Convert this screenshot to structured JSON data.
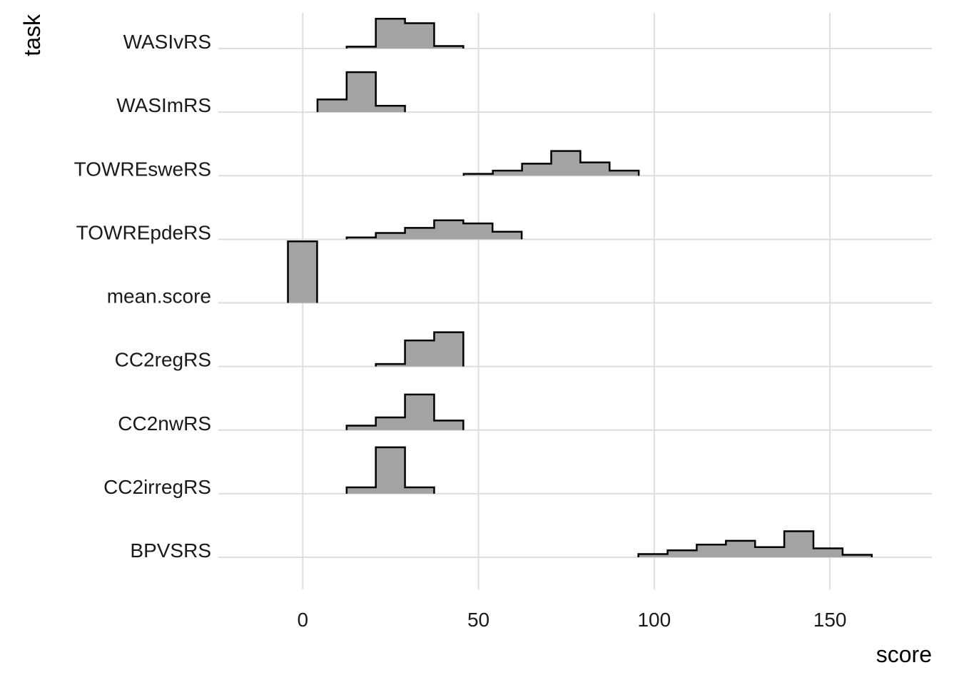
{
  "chart_data": {
    "type": "histogram-ridgeline",
    "title": "",
    "xlabel": "score",
    "ylabel": "task",
    "xlim": [
      -24,
      179
    ],
    "x_ticks": [
      0,
      50,
      100,
      150
    ],
    "grid": true,
    "categories": [
      "BPVSRS",
      "CC2irregRS",
      "CC2nwRS",
      "CC2regRS",
      "mean.score",
      "TOWREpdeRS",
      "TOWREsweRS",
      "WASImRS",
      "WASIvRS"
    ],
    "fill_color": "#a3a3a3",
    "outline_color": "#000000",
    "grid_color": "#dedede",
    "bin_width": 8.3,
    "series": [
      {
        "category": "BPVSRS",
        "bin_start": 95.5,
        "heights": [
          0.05,
          0.11,
          0.2,
          0.26,
          0.16,
          0.41,
          0.14,
          0.04
        ]
      },
      {
        "category": "CC2irregRS",
        "bin_start": 12.5,
        "heights": [
          0.1,
          0.73,
          0.1
        ]
      },
      {
        "category": "CC2nwRS",
        "bin_start": 12.5,
        "heights": [
          0.07,
          0.2,
          0.56,
          0.15
        ]
      },
      {
        "category": "CC2regRS",
        "bin_start": 20.8,
        "heights": [
          0.04,
          0.41,
          0.54
        ]
      },
      {
        "category": "mean.score",
        "bin_start": -4.2,
        "heights": [
          0.97
        ]
      },
      {
        "category": "TOWREpdeRS",
        "bin_start": 12.5,
        "heights": [
          0.03,
          0.1,
          0.18,
          0.3,
          0.25,
          0.12
        ]
      },
      {
        "category": "TOWREsweRS",
        "bin_start": 45.8,
        "heights": [
          0.03,
          0.08,
          0.19,
          0.39,
          0.21,
          0.08
        ]
      },
      {
        "category": "WASImRS",
        "bin_start": 4.2,
        "heights": [
          0.2,
          0.63,
          0.1
        ]
      },
      {
        "category": "WASIvRS",
        "bin_start": 12.5,
        "heights": [
          0.03,
          0.47,
          0.4,
          0.04
        ]
      }
    ]
  }
}
